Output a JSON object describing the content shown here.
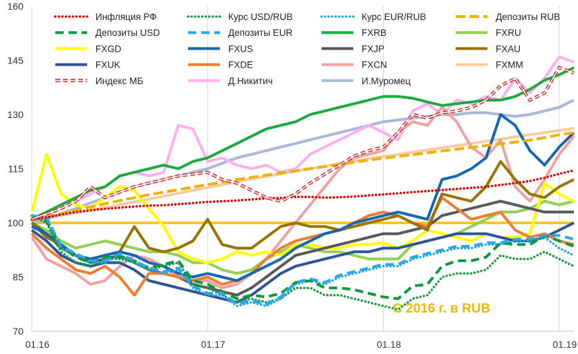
{
  "chart_data": {
    "type": "line",
    "title": "",
    "xlabel": "",
    "ylabel": "",
    "annotation": "С 2016 г. в RUB",
    "annotation_color": "#f5b800",
    "xlim": [
      0,
      37
    ],
    "ylim": [
      70,
      160
    ],
    "yticks": [
      70,
      85,
      100,
      115,
      130,
      145,
      160
    ],
    "xticks": [
      {
        "label": "01.16",
        "x": 0
      },
      {
        "label": "01.17",
        "x": 12
      },
      {
        "label": "01.18",
        "x": 24
      },
      {
        "label": "01.19",
        "x": 36
      }
    ],
    "grid": "vertical",
    "legend_position": "top",
    "reference_line": {
      "y": 100,
      "color": "#ffc000"
    },
    "series": [
      {
        "name": "Инфляция РФ",
        "color": "#e00000",
        "dash": "dot",
        "values": [
          100.9,
          101.5,
          102.3,
          103.0,
          103.5,
          103.9,
          104.2,
          104.5,
          104.8,
          104.9,
          105.2,
          105.5,
          105.8,
          106.0,
          106.2,
          106.5,
          106.8,
          106.9,
          107.2,
          107.2,
          107.0,
          107.1,
          107.3,
          107.6,
          107.9,
          108.2,
          108.5,
          108.8,
          109.1,
          109.4,
          109.7,
          110.0,
          110.5,
          111.0,
          111.6,
          112.5,
          113.6,
          114.5
        ]
      },
      {
        "name": "Курс USD/RUB",
        "color": "#1a9a40",
        "dash": "dot",
        "values": [
          102.0,
          100.0,
          92.0,
          89.0,
          88.0,
          90.0,
          90.0,
          89.0,
          87.0,
          88.0,
          89.0,
          83.0,
          82.0,
          80.0,
          78.0,
          79.0,
          78.0,
          79.0,
          82.0,
          82.0,
          80.0,
          80.0,
          79.0,
          78.0,
          77.0,
          76.0,
          79.0,
          80.0,
          85.0,
          86.0,
          86.0,
          87.0,
          91.0,
          90.0,
          90.0,
          92.0,
          90.0,
          88.0
        ]
      },
      {
        "name": "Курс EUR/RUB",
        "color": "#1ea7e8",
        "dash": "dot",
        "values": [
          102.0,
          101.0,
          93.0,
          91.0,
          89.0,
          89.0,
          91.0,
          89.0,
          87.0,
          86.0,
          87.0,
          82.0,
          80.0,
          80.0,
          77.0,
          78.0,
          77.0,
          79.0,
          83.0,
          84.0,
          83.0,
          85.0,
          86.0,
          87.0,
          88.0,
          88.0,
          90.0,
          91.0,
          92.0,
          93.0,
          93.0,
          94.0,
          94.0,
          95.0,
          95.0,
          96.0,
          93.0,
          91.0
        ]
      },
      {
        "name": "Депозиты RUB",
        "color": "#f0b000",
        "dash": "longdash",
        "values": [
          100.8,
          101.7,
          102.6,
          103.5,
          104.4,
          105.3,
          106.2,
          107.0,
          107.8,
          108.5,
          109.2,
          109.9,
          110.6,
          111.3,
          112.0,
          112.6,
          113.2,
          113.8,
          114.4,
          115.0,
          115.6,
          116.2,
          116.8,
          117.4,
          117.9,
          118.4,
          118.9,
          119.4,
          119.9,
          120.4,
          120.9,
          121.4,
          121.9,
          122.4,
          122.9,
          123.6,
          124.4,
          125.0
        ]
      },
      {
        "name": "Депозиты USD",
        "color": "#0a9a3a",
        "dash": "dash",
        "values": [
          102.0,
          100.5,
          93.5,
          90.5,
          89.0,
          90.5,
          90.5,
          89.5,
          87.5,
          88.5,
          89.5,
          84.0,
          83.0,
          81.0,
          79.0,
          80.0,
          79.5,
          80.5,
          83.5,
          84.0,
          82.0,
          82.0,
          81.5,
          80.5,
          79.5,
          79.0,
          82.5,
          83.0,
          88.0,
          89.5,
          89.5,
          90.5,
          94.5,
          94.0,
          94.0,
          96.5,
          95.0,
          93.5
        ]
      },
      {
        "name": "Депозиты EUR",
        "color": "#28a8e8",
        "dash": "dash",
        "values": [
          102.0,
          101.5,
          93.5,
          91.5,
          89.5,
          89.5,
          91.5,
          89.5,
          87.5,
          86.5,
          87.5,
          82.5,
          80.5,
          80.5,
          77.5,
          78.5,
          77.5,
          79.5,
          83.5,
          84.5,
          83.5,
          85.5,
          86.5,
          87.5,
          88.5,
          88.5,
          90.5,
          91.5,
          92.5,
          93.5,
          93.5,
          94.5,
          94.5,
          95.5,
          95.5,
          96.5,
          96.5,
          95.5
        ]
      },
      {
        "name": "FXRB",
        "color": "#1faa40",
        "dash": "solid",
        "values": [
          101.0,
          103.0,
          105.0,
          107.0,
          109.0,
          110.0,
          113.0,
          114.0,
          115.0,
          116.0,
          115.0,
          117.0,
          118.0,
          120.0,
          122.0,
          124.0,
          126.0,
          127.0,
          128.0,
          130.0,
          131.0,
          132.0,
          133.0,
          134.0,
          135.0,
          135.0,
          134.5,
          133.5,
          132.5,
          133.0,
          133.5,
          134.0,
          134.0,
          135.0,
          137.0,
          139.5,
          141.0,
          143.0
        ]
      },
      {
        "name": "FXRU",
        "color": "#92d050",
        "dash": "solid",
        "values": [
          100.0,
          98.0,
          95.0,
          93.0,
          94.0,
          95.0,
          94.0,
          93.0,
          92.0,
          92.0,
          91.0,
          89.0,
          89.0,
          87.0,
          86.0,
          87.0,
          90.0,
          92.0,
          94.0,
          93.0,
          92.0,
          92.0,
          91.0,
          90.0,
          90.0,
          90.0,
          94.0,
          95.0,
          96.0,
          97.0,
          99.0,
          101.0,
          103.0,
          103.0,
          104.0,
          106.0,
          105.0,
          106.0
        ]
      },
      {
        "name": "FXGD",
        "color": "#ffff00",
        "dash": "solid",
        "values": [
          103.0,
          119.0,
          108.0,
          105.0,
          104.0,
          107.0,
          110.0,
          109.0,
          104.0,
          99.0,
          92.0,
          90.0,
          89.0,
          90.0,
          92.0,
          91.0,
          92.0,
          91.0,
          94.0,
          94.0,
          93.0,
          93.0,
          94.0,
          94.0,
          94.5,
          93.0,
          95.0,
          98.0,
          97.0,
          96.0,
          95.0,
          97.0,
          96.0,
          96.0,
          97.0,
          111.0,
          108.0,
          106.0
        ]
      },
      {
        "name": "FXUS",
        "color": "#1766b0",
        "dash": "solid",
        "values": [
          99.0,
          97.0,
          94.0,
          91.0,
          90.0,
          91.0,
          92.0,
          91.0,
          89.0,
          88.0,
          86.0,
          85.0,
          86.0,
          85.0,
          84.0,
          86.0,
          88.0,
          90.0,
          93.0,
          95.0,
          97.0,
          98.0,
          100.0,
          101.0,
          102.0,
          103.0,
          102.0,
          101.0,
          112.0,
          113.0,
          115.0,
          118.0,
          130.0,
          127.0,
          120.0,
          116.0,
          121.0,
          125.0
        ]
      },
      {
        "name": "FXJP",
        "color": "#595959",
        "dash": "solid",
        "values": [
          100.0,
          97.0,
          93.0,
          91.0,
          89.0,
          90.0,
          91.0,
          89.0,
          87.0,
          86.0,
          85.0,
          83.0,
          82.0,
          81.0,
          80.0,
          82.0,
          85.0,
          88.0,
          91.0,
          92.0,
          93.0,
          94.0,
          95.0,
          96.0,
          97.0,
          97.0,
          98.0,
          99.0,
          102.0,
          103.0,
          104.0,
          105.0,
          106.0,
          105.0,
          104.0,
          103.0,
          103.0,
          103.0
        ]
      },
      {
        "name": "FXAU",
        "color": "#997300",
        "dash": "solid",
        "values": [
          100.0,
          96.0,
          94.0,
          91.0,
          90.0,
          91.0,
          92.0,
          99.0,
          93.0,
          92.0,
          93.0,
          95.0,
          101.0,
          94.0,
          93.0,
          93.0,
          96.0,
          99.0,
          100.0,
          99.0,
          99.0,
          98.0,
          99.0,
          100.0,
          101.0,
          102.0,
          100.0,
          98.0,
          108.0,
          107.0,
          106.0,
          110.0,
          117.0,
          112.0,
          108.0,
          107.0,
          110.0,
          112.0
        ]
      },
      {
        "name": "FXUK",
        "color": "#2e5597",
        "dash": "solid",
        "values": [
          98.0,
          95.0,
          91.0,
          89.0,
          88.0,
          89.0,
          89.0,
          87.0,
          84.0,
          83.0,
          82.0,
          81.0,
          80.0,
          79.0,
          78.0,
          80.0,
          83.0,
          86.0,
          88.0,
          89.0,
          90.0,
          91.0,
          92.0,
          92.0,
          93.0,
          93.0,
          94.0,
          95.0,
          96.0,
          97.0,
          97.0,
          97.0,
          96.0,
          95.0,
          95.0,
          96.0,
          98.0,
          100.0
        ]
      },
      {
        "name": "FXDE",
        "color": "#ed7d31",
        "dash": "solid",
        "values": [
          97.0,
          93.0,
          90.0,
          87.0,
          86.0,
          88.0,
          85.0,
          80.0,
          86.0,
          86.0,
          85.0,
          84.0,
          85.0,
          83.0,
          84.0,
          86.0,
          90.0,
          93.0,
          95.0,
          96.0,
          97.0,
          98.0,
          100.0,
          102.0,
          103.0,
          102.0,
          100.0,
          99.0,
          107.0,
          104.0,
          101.0,
          102.0,
          103.0,
          98.0,
          96.0,
          97.0,
          95.0,
          94.0
        ]
      },
      {
        "name": "FXCN",
        "color": "#f4a0a0",
        "dash": "solid",
        "values": [
          96.0,
          90.0,
          88.0,
          86.0,
          83.0,
          84.0,
          88.0,
          91.0,
          90.0,
          88.0,
          85.0,
          84.0,
          84.0,
          82.0,
          83.0,
          86.0,
          90.0,
          95.0,
          100.0,
          105.0,
          110.0,
          115.0,
          118.0,
          119.0,
          120.0,
          125.0,
          128.0,
          127.0,
          132.0,
          128.0,
          121.0,
          118.0,
          123.0,
          110.0,
          106.0,
          112.0,
          119.0,
          124.0
        ]
      },
      {
        "name": "FXMM",
        "color": "#f8cba0",
        "dash": "solid",
        "values": [
          100.7,
          101.4,
          102.1,
          102.8,
          103.5,
          104.2,
          105.0,
          105.8,
          106.6,
          107.4,
          108.2,
          109.0,
          109.8,
          110.6,
          111.4,
          112.2,
          112.9,
          113.6,
          114.3,
          115.0,
          115.7,
          116.4,
          117.1,
          117.8,
          118.4,
          119.0,
          119.6,
          120.2,
          120.8,
          121.4,
          122.0,
          122.6,
          123.2,
          123.8,
          124.4,
          125.0,
          125.6,
          126.2
        ]
      },
      {
        "name": "Индекс МБ",
        "color": "#d02020",
        "dash": "double",
        "values": [
          101.0,
          102.5,
          104.0,
          106.0,
          110.0,
          107.0,
          108.5,
          110.0,
          111.0,
          112.0,
          113.0,
          113.5,
          114.0,
          112.0,
          111.0,
          109.0,
          107.0,
          106.0,
          108.0,
          111.0,
          113.5,
          116.0,
          118.5,
          120.0,
          121.0,
          125.0,
          130.0,
          129.0,
          130.5,
          131.0,
          132.0,
          134.0,
          138.0,
          140.0,
          134.0,
          136.0,
          143.0,
          141.5
        ]
      },
      {
        "name": "Д.Никитич",
        "color": "#ffb0f0",
        "dash": "solid",
        "values": [
          101.0,
          102.0,
          104.0,
          106.0,
          108.0,
          110.0,
          113.0,
          114.0,
          113.0,
          114.0,
          127.0,
          126.0,
          117.0,
          118.0,
          116.0,
          115.0,
          116.0,
          114.0,
          115.0,
          119.0,
          121.0,
          123.0,
          125.0,
          127.0,
          125.0,
          123.0,
          131.0,
          133.0,
          130.0,
          134.0,
          133.0,
          135.0,
          134.0,
          140.0,
          136.0,
          140.0,
          146.0,
          144.5
        ]
      },
      {
        "name": "И.Муромец",
        "color": "#a9b8d8",
        "dash": "solid",
        "values": [
          100.0,
          101.0,
          102.5,
          104.0,
          105.5,
          107.0,
          108.5,
          110.0,
          111.0,
          112.0,
          113.0,
          114.0,
          115.0,
          116.5,
          118.0,
          119.0,
          120.0,
          121.0,
          122.0,
          123.0,
          124.0,
          125.0,
          126.0,
          127.0,
          128.0,
          128.5,
          129.0,
          129.5,
          130.0,
          130.0,
          130.5,
          130.5,
          130.0,
          129.5,
          130.0,
          131.0,
          132.0,
          134.0
        ]
      }
    ]
  }
}
